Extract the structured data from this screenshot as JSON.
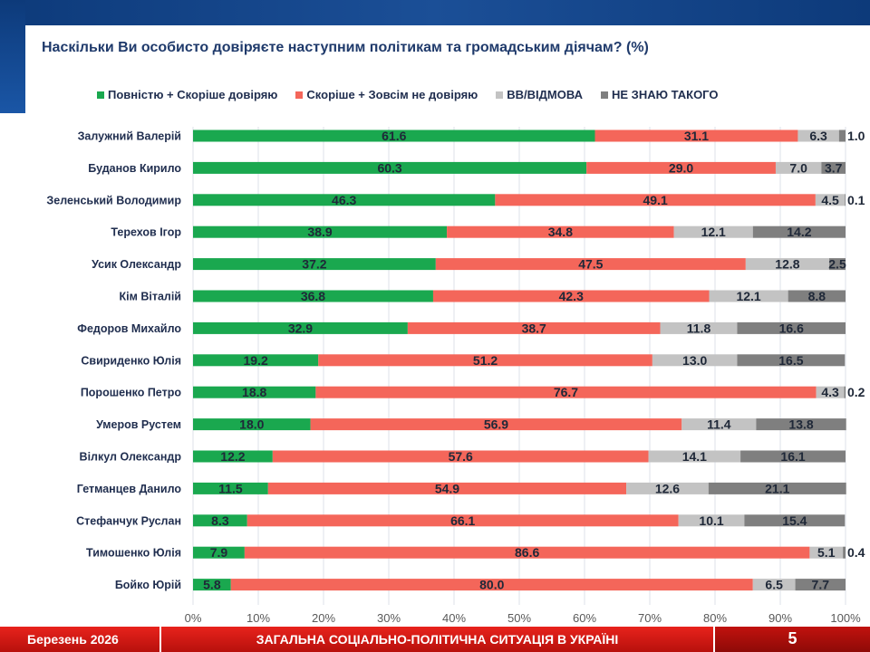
{
  "header": {
    "title": "Наскільки Ви особисто довіряєте наступним політикам та громадським діячам? (%)"
  },
  "chart_data": {
    "type": "bar",
    "stacked": true,
    "orientation": "horizontal",
    "title": "Наскільки Ви особисто довіряєте наступним політикам та громадським діячам? (%)",
    "xlim": [
      0,
      100
    ],
    "grid": true,
    "legend_position": "top",
    "xticks": [
      "0%",
      "10%",
      "20%",
      "30%",
      "40%",
      "50%",
      "60%",
      "70%",
      "80%",
      "90%",
      "100%"
    ],
    "categories": [
      "Залужний Валерій",
      "Буданов Кирило",
      "Зеленський Володимир",
      "Терехов Ігор",
      "Усик Олександр",
      "Кім Віталій",
      "Федоров Михайло",
      "Свириденко Юлія",
      "Порошенко Петро",
      "Умеров Рустем",
      "Вілкул Олександр",
      "Гетманцев Данило",
      "Стефанчук Руслан",
      "Тимошенко Юлія",
      "Бойко Юрій"
    ],
    "series": [
      {
        "name": "Повністю + Скоріше довіряю",
        "color": "#1aa84f",
        "values": [
          61.6,
          60.3,
          46.3,
          38.9,
          37.2,
          36.8,
          32.9,
          19.2,
          18.8,
          18.0,
          12.2,
          11.5,
          8.3,
          7.9,
          5.8
        ]
      },
      {
        "name": "Скоріше + Зовсім не довіряю",
        "color": "#f4665a",
        "values": [
          31.1,
          29.0,
          49.1,
          34.8,
          47.5,
          42.3,
          38.7,
          51.2,
          76.7,
          56.9,
          57.6,
          54.9,
          66.1,
          86.6,
          80.0
        ]
      },
      {
        "name": "ВВ/ВІДМОВА",
        "color": "#c3c3c3",
        "values": [
          6.3,
          7.0,
          4.5,
          12.1,
          12.8,
          12.1,
          11.8,
          13.0,
          4.3,
          11.4,
          14.1,
          12.6,
          10.1,
          5.1,
          6.5
        ]
      },
      {
        "name": "НЕ ЗНАЮ ТАКОГО",
        "color": "#7f7f7f",
        "values": [
          1.0,
          3.7,
          0.1,
          14.2,
          2.5,
          8.8,
          16.6,
          16.5,
          0.2,
          13.8,
          16.1,
          21.1,
          15.4,
          0.4,
          7.7
        ]
      }
    ]
  },
  "footer": {
    "date": "Березень 2026",
    "section": "ЗАГАЛЬНА СОЦІАЛЬНО-ПОЛІТИЧНА СИТУАЦІЯ В УКРАЇНІ",
    "page": "5"
  }
}
